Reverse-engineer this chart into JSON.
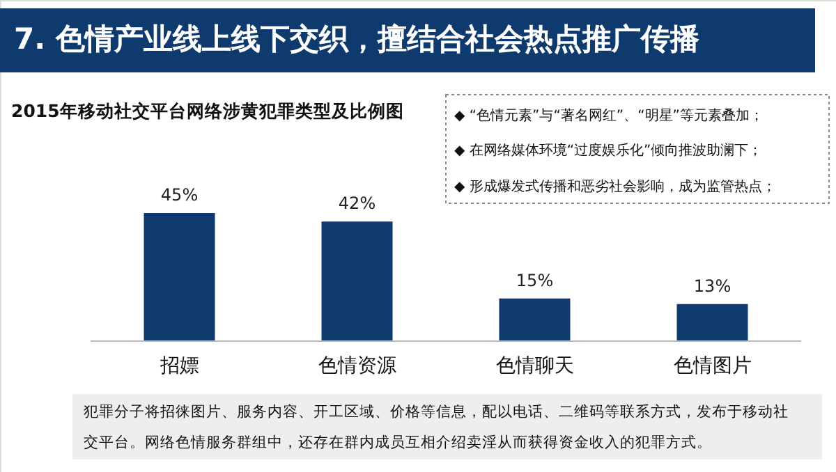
{
  "chart_data": {
    "type": "bar",
    "title": "7. 色情产业线上线下交织，擅结合社会热点推广传播",
    "subtitle": "2015年移动社交平台网络涉黄犯罪类型及比例图",
    "categories": [
      "招嫖",
      "色情资源",
      "色情聊天",
      "色情图片"
    ],
    "values": [
      45,
      42,
      15,
      13
    ],
    "value_labels": [
      "45%",
      "42%",
      "15%",
      "13%"
    ],
    "color": "#0e3a6e",
    "annotations": [
      "◆ “色情元素”与“著名网红”、“明星”等元素叠加；",
      "◆ 在网络媒体环境“过度娱乐化”倾向推波助澜下；",
      "◆ 形成爆发式传播和恶劣社会影响，成为监管热点；",
      "犯罪分子将招徕图片、服务内容、开工区域、价格等信息，配以电话、二维码等联系方式，发布于移动社",
      "交平台。网络色情服务群组中，还存在群内成员互相介绍卖淫从而获得资金收入的犯罪方式。"
    ]
  }
}
